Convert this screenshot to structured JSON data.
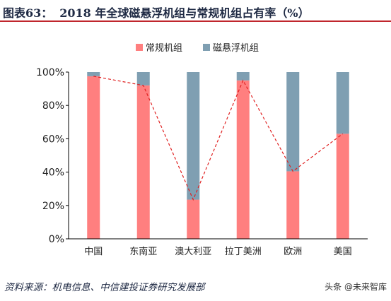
{
  "header": {
    "label": "图表63：",
    "title": "2018 年全球磁悬浮机组与常规机组占有率（%）"
  },
  "source": "资料来源：机电信息、中信建投证券研究发展部",
  "watermark": "头条 @未来智库",
  "colors": {
    "conventional": "#ff7f7f",
    "maglev": "#7f9fb2",
    "trend_line": "#e02020",
    "title_rule": "#c0262d"
  },
  "chart_data": {
    "type": "bar",
    "stacked": true,
    "title": "",
    "xlabel": "",
    "ylabel": "",
    "categories": [
      "中国",
      "东南亚",
      "澳大利亚",
      "拉丁美洲",
      "欧洲",
      "美国"
    ],
    "series": [
      {
        "name": "常规机组",
        "values": [
          97.5,
          92,
          23.5,
          95,
          40.5,
          63
        ]
      },
      {
        "name": "磁悬浮机组",
        "values": [
          2.5,
          8,
          76.5,
          5,
          59.5,
          37
        ]
      }
    ],
    "yticks": [
      "0%",
      "20%",
      "40%",
      "60%",
      "80%",
      "100%"
    ],
    "ylim": [
      0,
      100
    ],
    "grid": false,
    "legend": "top-center",
    "trend_line": "dashed line connecting top of 常规机组 segments"
  }
}
